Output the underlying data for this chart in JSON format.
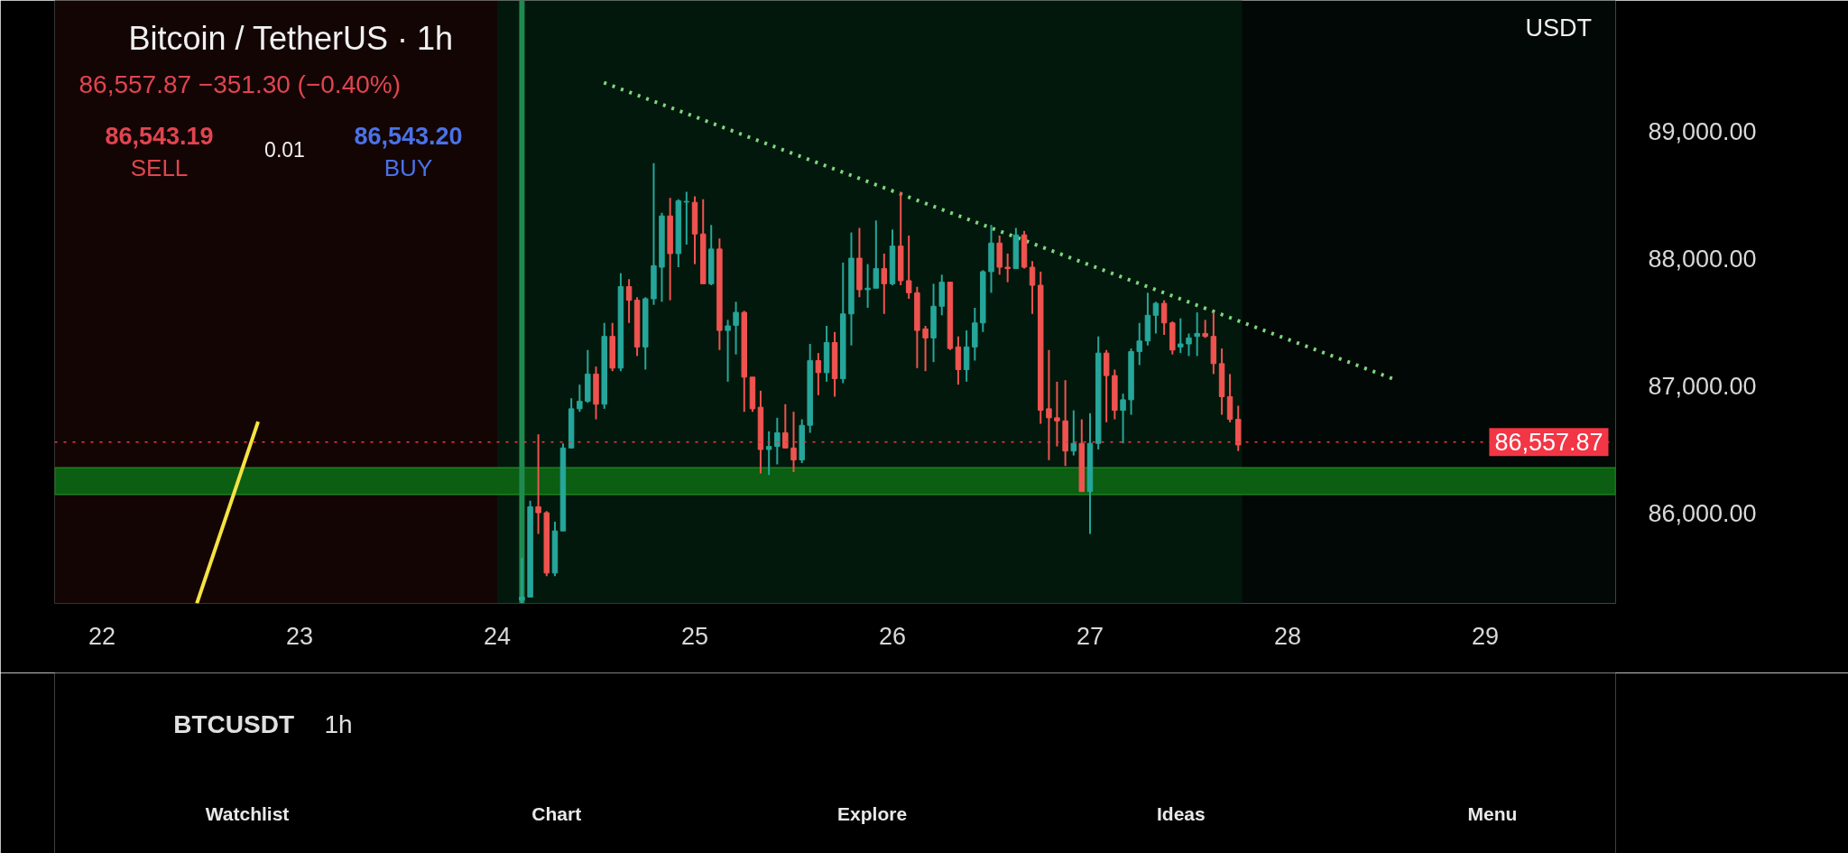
{
  "chart_data": {
    "type": "candlestick",
    "title": "Bitcoin / TetherUS · 1h",
    "annotations": [
      "86,557.87  −351.30 (−0.40%)",
      "86,543.19",
      "SELL",
      "0.01",
      "86,543.20",
      "BUY",
      "USDT",
      "BTCUSDT",
      "1h",
      "Watchlist",
      "Chart",
      "Explore",
      "Ideas",
      "Menu"
    ],
    "x": [
      24.125,
      24.167,
      24.208,
      24.25,
      24.292,
      24.333,
      24.375,
      24.417,
      24.458,
      24.5,
      24.542,
      24.583,
      24.625,
      24.667,
      24.708,
      24.75,
      24.792,
      24.833,
      24.875,
      24.917,
      24.958,
      25,
      25.042,
      25.083,
      25.125,
      25.167,
      25.208,
      25.25,
      25.292,
      25.333,
      25.375,
      25.417,
      25.458,
      25.5,
      25.542,
      25.583,
      25.625,
      25.667,
      25.708,
      25.75,
      25.792,
      25.833,
      25.875,
      25.917,
      25.958,
      26,
      26.042,
      26.083,
      26.125,
      26.167,
      26.208,
      26.25,
      26.292,
      26.333,
      26.375,
      26.417,
      26.458,
      26.5,
      26.542,
      26.583,
      26.625,
      26.667,
      26.708,
      26.75,
      26.792,
      26.833,
      26.875,
      26.917,
      26.958,
      27,
      27.042,
      27.083,
      27.125,
      27.167,
      27.208,
      27.25,
      27.292,
      27.333,
      27.375,
      27.417,
      27.458,
      27.5,
      27.542,
      27.583,
      27.625,
      27.667,
      27.708,
      27.75
    ],
    "ohlc": [
      [
        85316,
        85648,
        85292,
        85340
      ],
      [
        85340,
        86097,
        85340,
        86050
      ],
      [
        86050,
        86619,
        85837,
        86003
      ],
      [
        86003,
        86015,
        85505,
        85529
      ],
      [
        85529,
        85932,
        85505,
        85860
      ],
      [
        85860,
        86548,
        85860,
        86512
      ],
      [
        86512,
        86903,
        86512,
        86820
      ],
      [
        86820,
        87010,
        86796,
        86879
      ],
      [
        86879,
        87282,
        86867,
        87093
      ],
      [
        87093,
        87152,
        86737,
        86856
      ],
      [
        86856,
        87495,
        86820,
        87389
      ],
      [
        87389,
        87495,
        87116,
        87140
      ],
      [
        87140,
        87886,
        87116,
        87780
      ],
      [
        87780,
        87839,
        87495,
        87673
      ],
      [
        87673,
        87697,
        87235,
        87306
      ],
      [
        87306,
        87697,
        87128,
        87685
      ],
      [
        87685,
        88751,
        87637,
        87945
      ],
      [
        87933,
        88360,
        87661,
        88336
      ],
      [
        88336,
        88478,
        87673,
        88040
      ],
      [
        88040,
        88467,
        87933,
        88455
      ],
      [
        88445,
        88526,
        88111,
        88450
      ],
      [
        88443,
        88490,
        87957,
        88194
      ],
      [
        88194,
        88467,
        87803,
        87803
      ],
      [
        87803,
        88265,
        87791,
        88076
      ],
      [
        88076,
        88159,
        87282,
        87436
      ],
      [
        87436,
        87519,
        87033,
        87472
      ],
      [
        87476,
        87661,
        87247,
        87578
      ],
      [
        87578,
        87590,
        86796,
        87069
      ],
      [
        87069,
        87069,
        86796,
        86820
      ],
      [
        86832,
        86962,
        86311,
        86500
      ],
      [
        86500,
        86643,
        86299,
        86524
      ],
      [
        86524,
        86749,
        86382,
        86631
      ],
      [
        86631,
        86856,
        86512,
        86512
      ],
      [
        86512,
        86797,
        86323,
        86418
      ],
      [
        86418,
        86737,
        86394,
        86690
      ],
      [
        86690,
        87330,
        86631,
        87199
      ],
      [
        87199,
        87258,
        86927,
        87104
      ],
      [
        87104,
        87472,
        87033,
        87341
      ],
      [
        87341,
        87424,
        86915,
        87057
      ],
      [
        87057,
        87969,
        87021,
        87566
      ],
      [
        87566,
        88206,
        87318,
        88004
      ],
      [
        88004,
        88241,
        87697,
        87756
      ],
      [
        87756,
        87957,
        87614,
        87768
      ],
      [
        87768,
        88301,
        87768,
        87922
      ],
      [
        87922,
        88040,
        87566,
        87803
      ],
      [
        87803,
        88230,
        87791,
        88099
      ],
      [
        88099,
        88526,
        87791,
        87827
      ],
      [
        87827,
        88182,
        87685,
        87732
      ],
      [
        87732,
        87779,
        87140,
        87436
      ],
      [
        87448,
        87472,
        87116,
        87377
      ],
      [
        87377,
        87803,
        87187,
        87626
      ],
      [
        87626,
        87874,
        87555,
        87815
      ],
      [
        87815,
        87815,
        87282,
        87294
      ],
      [
        87306,
        87389,
        87010,
        87128
      ],
      [
        87128,
        87436,
        87033,
        87306
      ],
      [
        87306,
        87614,
        87199,
        87495
      ],
      [
        87495,
        87910,
        87424,
        87898
      ],
      [
        87898,
        88265,
        87732,
        88123
      ],
      [
        88123,
        88182,
        87874,
        87933
      ],
      [
        87933,
        88040,
        87815,
        87922
      ],
      [
        87922,
        88241,
        87922,
        88187
      ],
      [
        88187,
        88218,
        87922,
        87933
      ],
      [
        87933,
        87981,
        87566,
        87791
      ],
      [
        87791,
        87898,
        86702,
        86808
      ],
      [
        86820,
        87282,
        86417,
        86749
      ],
      [
        86749,
        87033,
        86524,
        86725
      ],
      [
        86725,
        87045,
        86370,
        86488
      ],
      [
        86488,
        86808,
        86453,
        86548
      ],
      [
        86548,
        86737,
        86169,
        86169
      ],
      [
        86169,
        86785,
        85837,
        86548
      ],
      [
        86548,
        87389,
        86500,
        87258
      ],
      [
        87258,
        87282,
        86714,
        87081
      ],
      [
        87081,
        87128,
        86737,
        86808
      ],
      [
        86808,
        86939,
        86548,
        86891
      ],
      [
        86891,
        87294,
        86773,
        87270
      ],
      [
        87270,
        87495,
        87164,
        87353
      ],
      [
        87353,
        87732,
        87318,
        87555
      ],
      [
        87555,
        87661,
        87412,
        87649
      ],
      [
        87649,
        87673,
        87401,
        87495
      ],
      [
        87495,
        87507,
        87247,
        87282
      ],
      [
        87306,
        87531,
        87258,
        87330
      ],
      [
        87330,
        87412,
        87235,
        87377
      ],
      [
        87389,
        87578,
        87235,
        87412
      ],
      [
        87412,
        87519,
        87377,
        87389
      ],
      [
        87389,
        87578,
        87093,
        87175
      ],
      [
        87175,
        87294,
        86773,
        86915
      ],
      [
        86915,
        87093,
        86714,
        86737
      ],
      [
        86737,
        86844,
        86488,
        86536
      ]
    ],
    "series": [
      {
        "type": "line",
        "color": "#7ed67e",
        "line_style": "dotted",
        "x": [
          24.54,
          28.55
        ],
        "values": [
          89384,
          87046
        ]
      },
      {
        "type": "line",
        "color": "#f5e342",
        "line_style": "solid",
        "x": [
          22.48,
          22.79
        ],
        "values": [
          85290,
          86719
        ]
      }
    ],
    "xlim": [
      21.76,
      29.66
    ],
    "xticks": [
      22,
      23,
      24,
      25,
      26,
      27,
      28,
      29
    ],
    "ylim": [
      85290,
      90030
    ],
    "yticks": [
      {
        "value": 86000,
        "label": "86,000.00"
      },
      {
        "value": 87000,
        "label": "87,000.00"
      },
      {
        "value": 88000,
        "label": "88,000.00"
      },
      {
        "value": 89000,
        "label": "89,000.00"
      }
    ],
    "ref_lines": [
      {
        "axis": "y",
        "value": 86557.87,
        "label": "86,557.87",
        "color": "#f23645",
        "line_style": "dotted"
      },
      {
        "axis": "x",
        "value": 24.125,
        "color": "#1f8a4f",
        "line_style": "solid"
      }
    ],
    "bands": [
      {
        "axis": "x",
        "from": 21.76,
        "to": 24,
        "color": "#140505"
      },
      {
        "axis": "x",
        "from": 24,
        "to": 27.77,
        "color": "#03180c"
      },
      {
        "axis": "y",
        "from": 86145,
        "to": 86358,
        "color": "#0b5e12"
      }
    ]
  }
}
